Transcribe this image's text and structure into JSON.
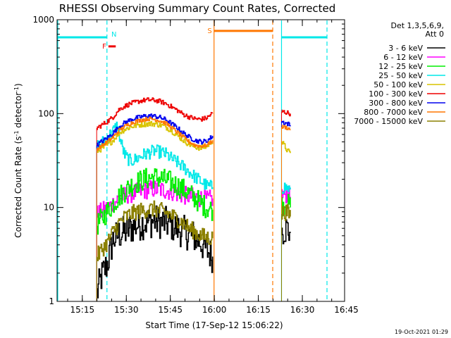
{
  "chart_data": {
    "type": "line",
    "title": "RHESSI Observing Summary Count Rates, Corrected",
    "xlabel": "Start Time (17-Sep-12 15:06:22)",
    "ylabel_main": "Corrected Count Rate (s",
    "ylabel_sup1": "-1",
    "ylabel_mid": " detector",
    "ylabel_sup2": "-1",
    "ylabel_end": ")",
    "yscale": "log",
    "ylim": [
      1,
      1000
    ],
    "xlim_minutes": [
      0,
      98
    ],
    "y_ticks": [
      {
        "value": 1,
        "label": "1"
      },
      {
        "value": 10,
        "label": "10"
      },
      {
        "value": 100,
        "label": "100"
      },
      {
        "value": 1000,
        "label": "1000"
      }
    ],
    "x_ticks": [
      {
        "minute": 8.6,
        "label": "15:15"
      },
      {
        "minute": 23.6,
        "label": "15:30"
      },
      {
        "minute": 38.6,
        "label": "15:45"
      },
      {
        "minute": 53.6,
        "label": "16:00"
      },
      {
        "minute": 68.6,
        "label": "16:15"
      },
      {
        "minute": 83.6,
        "label": "16:30"
      },
      {
        "minute": 98.6,
        "label": "16:45"
      }
    ],
    "legend_title_1": "Det 1,3,5,6,9,",
    "legend_title_2": "Att 0",
    "legend_placement": "right",
    "series": [
      {
        "name": "3 - 6 keV",
        "color": "#000000",
        "segments": [
          [
            [
              13.5,
              1.2
            ],
            [
              15,
              1.8
            ],
            [
              17,
              2.5
            ],
            [
              19,
              4.5
            ],
            [
              21,
              5.2
            ],
            [
              23,
              5.5
            ],
            [
              25,
              6.0
            ],
            [
              27,
              6.5
            ],
            [
              29,
              6.8
            ],
            [
              31,
              7.0
            ],
            [
              33,
              7.2
            ],
            [
              35,
              7.0
            ],
            [
              37,
              6.8
            ],
            [
              39,
              6.5
            ],
            [
              41,
              6.0
            ],
            [
              43,
              5.5
            ],
            [
              45,
              5.2
            ],
            [
              47,
              4.8
            ],
            [
              49,
              4.2
            ],
            [
              51,
              3.5
            ],
            [
              53,
              3.0
            ]
          ],
          [
            [
              76.5,
              5.5
            ],
            [
              77.5,
              6.0
            ],
            [
              78.5,
              5.8
            ],
            [
              79.5,
              5.5
            ]
          ]
        ]
      },
      {
        "name": "6 - 12 keV",
        "color": "#ff00ff",
        "segments": [
          [
            [
              13.5,
              8.5
            ],
            [
              15,
              9.0
            ],
            [
              17,
              9.8
            ],
            [
              19,
              11.0
            ],
            [
              21,
              12.5
            ],
            [
              23,
              13.5
            ],
            [
              25,
              14.0
            ],
            [
              27,
              14.5
            ],
            [
              29,
              15.0
            ],
            [
              31,
              15.5
            ],
            [
              33,
              15.8
            ],
            [
              35,
              15.5
            ],
            [
              37,
              15.2
            ],
            [
              39,
              14.8
            ],
            [
              41,
              14.0
            ],
            [
              43,
              13.5
            ],
            [
              45,
              13.2
            ],
            [
              47,
              12.8
            ],
            [
              49,
              12.5
            ],
            [
              51,
              12.0
            ],
            [
              53,
              12.5
            ]
          ],
          [
            [
              76.5,
              13.5
            ],
            [
              77.5,
              14.0
            ],
            [
              78.5,
              13.8
            ],
            [
              79.5,
              13.0
            ]
          ]
        ]
      },
      {
        "name": "12 - 25 keV",
        "color": "#00ee00",
        "segments": [
          [
            [
              13.5,
              6.5
            ],
            [
              15,
              7.5
            ],
            [
              17,
              9.0
            ],
            [
              19,
              11.0
            ],
            [
              21,
              13.0
            ],
            [
              23,
              15.0
            ],
            [
              25,
              17.0
            ],
            [
              27,
              18.5
            ],
            [
              29,
              19.5
            ],
            [
              31,
              20.5
            ],
            [
              33,
              21.0
            ],
            [
              35,
              20.5
            ],
            [
              37,
              19.5
            ],
            [
              39,
              18.5
            ],
            [
              41,
              17.0
            ],
            [
              43,
              15.5
            ],
            [
              45,
              14.0
            ],
            [
              47,
              12.5
            ],
            [
              49,
              11.0
            ],
            [
              51,
              10.0
            ],
            [
              53,
              9.5
            ]
          ],
          [
            [
              76.5,
              10.5
            ],
            [
              77.5,
              11.0
            ],
            [
              78.5,
              10.8
            ],
            [
              79.5,
              10.0
            ]
          ]
        ]
      },
      {
        "name": "25 - 50 keV",
        "color": "#00e8e8",
        "segments": [
          [
            [
              13.5,
              45
            ],
            [
              15,
              48
            ],
            [
              17,
              55
            ],
            [
              19,
              65
            ],
            [
              20.5,
              75
            ],
            [
              21.5,
              52
            ],
            [
              23,
              36
            ],
            [
              25,
              31
            ],
            [
              27,
              33
            ],
            [
              29,
              36
            ],
            [
              31,
              38
            ],
            [
              33,
              40
            ],
            [
              35,
              39
            ],
            [
              37,
              37
            ],
            [
              39,
              33
            ],
            [
              41,
              30
            ],
            [
              43,
              27
            ],
            [
              45,
              24
            ],
            [
              47,
              21
            ],
            [
              49,
              19
            ],
            [
              51,
              17
            ],
            [
              53,
              16.5
            ]
          ],
          [
            [
              76.5,
              16
            ],
            [
              77.5,
              16.5
            ],
            [
              78.5,
              16
            ],
            [
              79.5,
              15.5
            ]
          ]
        ]
      },
      {
        "name": "50 - 100 keV",
        "color": "#d8c400",
        "segments": [
          [
            [
              13.5,
              40
            ],
            [
              15,
              42
            ],
            [
              17,
              46
            ],
            [
              19,
              52
            ],
            [
              21,
              62
            ],
            [
              23,
              68
            ],
            [
              25,
              72
            ],
            [
              27,
              75
            ],
            [
              29,
              77
            ],
            [
              31,
              78
            ],
            [
              33,
              78
            ],
            [
              35,
              76
            ],
            [
              37,
              72
            ],
            [
              39,
              66
            ],
            [
              41,
              58
            ],
            [
              43,
              52
            ],
            [
              45,
              47
            ],
            [
              47,
              44
            ],
            [
              49,
              43
            ],
            [
              51,
              45
            ],
            [
              53,
              52
            ]
          ],
          [
            [
              76.5,
              50
            ],
            [
              77.5,
              45
            ],
            [
              78.5,
              40
            ],
            [
              79.5,
              38
            ]
          ]
        ]
      },
      {
        "name": "100 - 300 keV",
        "color": "#ee0000",
        "segments": [
          [
            [
              13.5,
              70
            ],
            [
              15,
              75
            ],
            [
              17,
              82
            ],
            [
              19,
              92
            ],
            [
              21,
              110
            ],
            [
              23,
              120
            ],
            [
              25,
              128
            ],
            [
              27,
              133
            ],
            [
              29,
              138
            ],
            [
              31,
              140
            ],
            [
              33,
              139
            ],
            [
              35,
              135
            ],
            [
              37,
              128
            ],
            [
              39,
              118
            ],
            [
              41,
              108
            ],
            [
              43,
              98
            ],
            [
              45,
              92
            ],
            [
              47,
              88
            ],
            [
              49,
              87
            ],
            [
              51,
              90
            ],
            [
              53,
              102
            ]
          ],
          [
            [
              76.5,
              105
            ],
            [
              77.5,
              104
            ],
            [
              78.5,
              102
            ],
            [
              79.5,
              100
            ]
          ]
        ]
      },
      {
        "name": "300 - 800 keV",
        "color": "#0000ee",
        "segments": [
          [
            [
              13.5,
              46
            ],
            [
              15,
              50
            ],
            [
              17,
              55
            ],
            [
              19,
              62
            ],
            [
              21,
              72
            ],
            [
              23,
              80
            ],
            [
              25,
              86
            ],
            [
              27,
              90
            ],
            [
              29,
              93
            ],
            [
              31,
              95
            ],
            [
              33,
              94
            ],
            [
              35,
              91
            ],
            [
              37,
              86
            ],
            [
              39,
              78
            ],
            [
              41,
              70
            ],
            [
              43,
              62
            ],
            [
              45,
              56
            ],
            [
              47,
              52
            ],
            [
              49,
              50
            ],
            [
              51,
              51
            ],
            [
              53,
              58
            ]
          ],
          [
            [
              76.5,
              82
            ],
            [
              77.5,
              80
            ],
            [
              78.5,
              78
            ],
            [
              79.5,
              75
            ]
          ]
        ]
      },
      {
        "name": "800 - 7000 keV",
        "color": "#ff7700",
        "segments": [
          [
            [
              13.5,
              42
            ],
            [
              15,
              45
            ],
            [
              17,
              50
            ],
            [
              19,
              56
            ],
            [
              21,
              66
            ],
            [
              23,
              73
            ],
            [
              25,
              79
            ],
            [
              27,
              83
            ],
            [
              29,
              86
            ],
            [
              31,
              88
            ],
            [
              33,
              87
            ],
            [
              35,
              84
            ],
            [
              37,
              79
            ],
            [
              39,
              71
            ],
            [
              41,
              63
            ],
            [
              43,
              56
            ],
            [
              45,
              50
            ],
            [
              47,
              46
            ],
            [
              49,
              45
            ],
            [
              51,
              46
            ],
            [
              53,
              52
            ]
          ],
          [
            [
              76.5,
              72
            ],
            [
              77.5,
              72
            ],
            [
              78.5,
              70
            ],
            [
              79.5,
              68
            ]
          ]
        ]
      },
      {
        "name": "7000 - 15000 keV",
        "color": "#8b8000",
        "segments": [
          [
            [
              13.5,
              3.0
            ],
            [
              15,
              3.5
            ],
            [
              17,
              4.2
            ],
            [
              19,
              5.5
            ],
            [
              21,
              6.8
            ],
            [
              23,
              7.8
            ],
            [
              25,
              8.5
            ],
            [
              27,
              9.0
            ],
            [
              29,
              9.3
            ],
            [
              31,
              9.5
            ],
            [
              33,
              9.6
            ],
            [
              35,
              9.3
            ],
            [
              37,
              8.8
            ],
            [
              39,
              8.2
            ],
            [
              41,
              7.5
            ],
            [
              43,
              6.8
            ],
            [
              45,
              6.0
            ],
            [
              47,
              5.5
            ],
            [
              49,
              5.0
            ],
            [
              51,
              4.8
            ],
            [
              53,
              4.7
            ]
          ],
          [
            [
              76.5,
              8.5
            ],
            [
              77.5,
              9.0
            ],
            [
              78.5,
              8.8
            ],
            [
              79.5,
              8.0
            ]
          ]
        ]
      }
    ],
    "flags": [
      {
        "label": "N",
        "color": "#00e8e8",
        "x_start": 0,
        "x_end": 17,
        "y": 650
      },
      {
        "label": "F",
        "color": "#ee0000",
        "x_start": 17.5,
        "x_end": 20,
        "y": 520
      },
      {
        "label": "S",
        "color": "#ff7700",
        "x_start": 53.5,
        "x_end": 73.5,
        "y": 760
      },
      {
        "label": "",
        "color": "#00e8e8",
        "x_start": 76.5,
        "x_end": 92,
        "y": 650
      }
    ],
    "vlines": [
      {
        "x": 0,
        "color": "#00e8e8",
        "style": "solid"
      },
      {
        "x": 17,
        "color": "#00e8e8",
        "style": "dashed"
      },
      {
        "x": 53.5,
        "color": "#ff7700",
        "style": "solid"
      },
      {
        "x": 73.5,
        "color": "#ff7700",
        "style": "dashed"
      },
      {
        "x": 76.5,
        "color": "#00e8e8",
        "style": "solid"
      },
      {
        "x": 92,
        "color": "#00e8e8",
        "style": "dashed"
      }
    ],
    "footer_date": "19-Oct-2021 01:29"
  }
}
